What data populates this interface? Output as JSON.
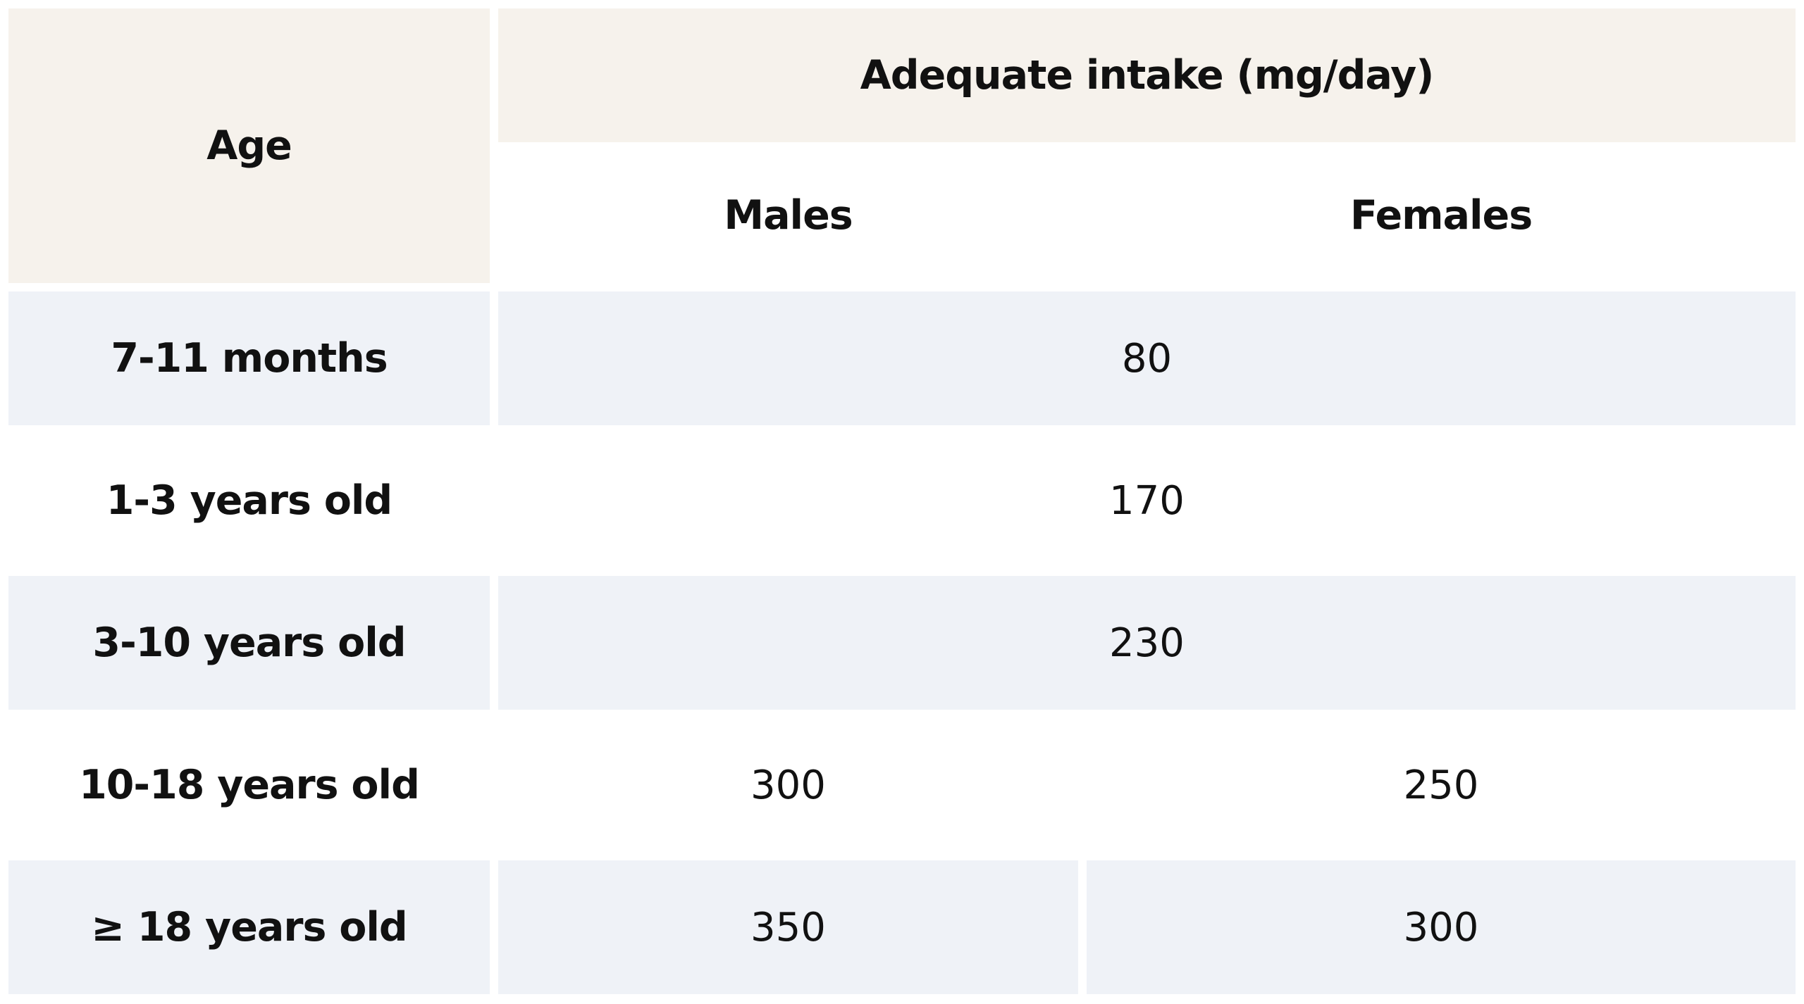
{
  "table": {
    "header": {
      "age": "Age",
      "intake": "Adequate intake (mg/day)",
      "males": "Males",
      "females": "Females"
    },
    "rows": [
      {
        "age": "7-11 months",
        "combined": "80"
      },
      {
        "age": "1-3 years old",
        "combined": "170"
      },
      {
        "age": "3-10 years old",
        "combined": "230"
      },
      {
        "age": "10-18 years old",
        "males": "300",
        "females": "250"
      },
      {
        "age": "≥ 18 years old",
        "males": "350",
        "females": "300"
      }
    ],
    "colors": {
      "header_background": "#f6f2ec",
      "row_stripe": "#eff2f7",
      "text": "#111111"
    }
  }
}
